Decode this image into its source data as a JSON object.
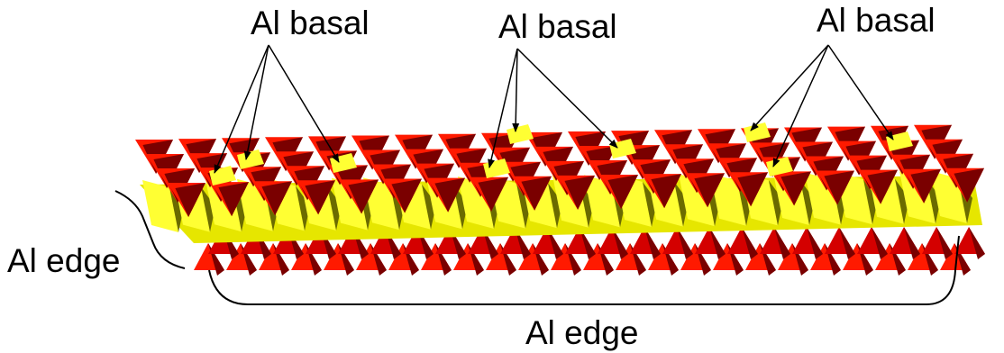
{
  "labels": {
    "basal_left": "Al basal",
    "basal_middle": "Al basal",
    "basal_right": "Al basal",
    "edge_left": "Al edge",
    "edge_bottom": "Al edge"
  },
  "colors": {
    "tetrahedron_light": "#ff1a00",
    "tetrahedron_mid": "#d40000",
    "tetrahedron_dark": "#7a0000",
    "octahedron_light": "#ffff33",
    "octahedron_mid": "#e6e600",
    "octahedron_shadow": "#6b6b00",
    "annotation": "#000000"
  }
}
